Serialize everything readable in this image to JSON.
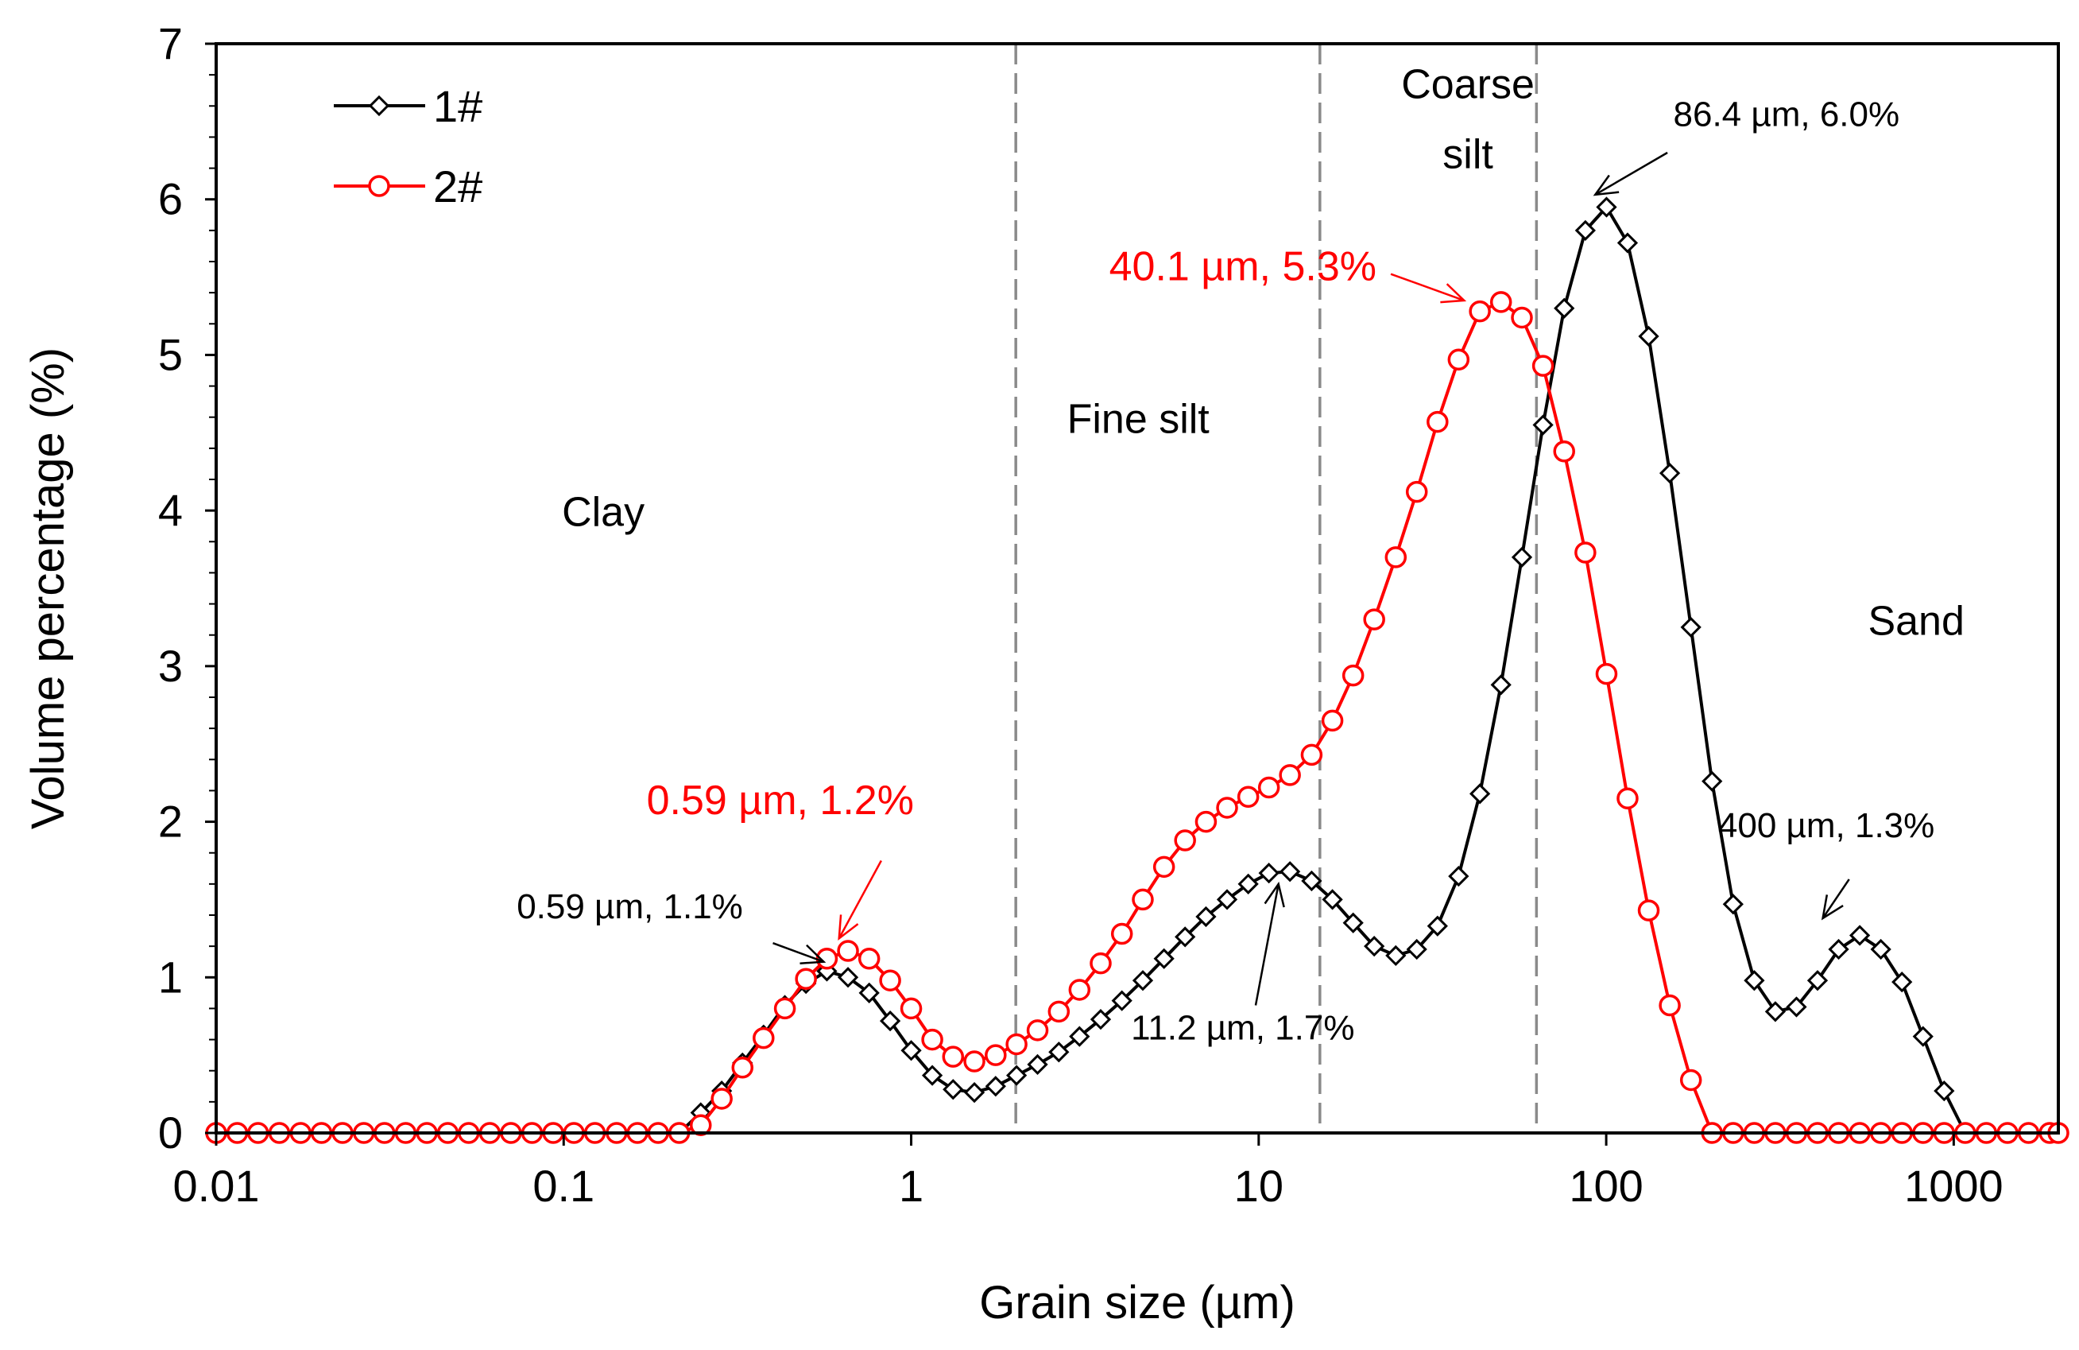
{
  "chart_data": {
    "type": "line",
    "title": "",
    "xlabel": "Grain size (µm)",
    "ylabel": "Volume percentage (%)",
    "x_scale": "log",
    "xlim": [
      0.01,
      2000
    ],
    "ylim": [
      0,
      7
    ],
    "x_ticks": [
      {
        "value": 0.01,
        "label": "0.01"
      },
      {
        "value": 0.1,
        "label": "0.1"
      },
      {
        "value": 1,
        "label": "1"
      },
      {
        "value": 10,
        "label": "10"
      },
      {
        "value": 100,
        "label": "100"
      },
      {
        "value": 1000,
        "label": "1000"
      }
    ],
    "y_ticks": [
      {
        "value": 0,
        "label": "0"
      },
      {
        "value": 1,
        "label": "1"
      },
      {
        "value": 2,
        "label": "2"
      },
      {
        "value": 3,
        "label": "3"
      },
      {
        "value": 4,
        "label": "4"
      },
      {
        "value": 5,
        "label": "5"
      },
      {
        "value": 6,
        "label": "6"
      },
      {
        "value": 7,
        "label": "7"
      }
    ],
    "grid": false,
    "legend": {
      "position": "top-left"
    },
    "boundaries": [
      2,
      15,
      63
    ],
    "regions": [
      {
        "label": "Clay",
        "x": 0.13,
        "y": 3.9
      },
      {
        "label": "Fine silt",
        "x": 4.5,
        "y": 4.5
      },
      {
        "label": "Coarse",
        "x": 40,
        "y": 6.65
      },
      {
        "label": "silt",
        "x": 40,
        "y": 6.2
      },
      {
        "label": "Sand",
        "x": 780,
        "y": 3.2
      }
    ],
    "series": [
      {
        "name": "1#",
        "color": "#000000",
        "marker": "diamond",
        "points": [
          [
            0.01,
            0
          ],
          [
            0.0115,
            0
          ],
          [
            0.0132,
            0
          ],
          [
            0.0152,
            0
          ],
          [
            0.0175,
            0
          ],
          [
            0.0201,
            0
          ],
          [
            0.0231,
            0
          ],
          [
            0.0266,
            0
          ],
          [
            0.0305,
            0
          ],
          [
            0.0351,
            0
          ],
          [
            0.0404,
            0
          ],
          [
            0.0464,
            0
          ],
          [
            0.0533,
            0
          ],
          [
            0.0613,
            0
          ],
          [
            0.0705,
            0
          ],
          [
            0.0811,
            0
          ],
          [
            0.0933,
            0
          ],
          [
            0.107,
            0
          ],
          [
            0.123,
            0
          ],
          [
            0.142,
            0
          ],
          [
            0.163,
            0
          ],
          [
            0.187,
            0
          ],
          [
            0.215,
            0
          ],
          [
            0.248,
            0.13
          ],
          [
            0.285,
            0.27
          ],
          [
            0.327,
            0.45
          ],
          [
            0.376,
            0.63
          ],
          [
            0.433,
            0.82
          ],
          [
            0.498,
            0.96
          ],
          [
            0.572,
            1.04
          ],
          [
            0.658,
            1.0
          ],
          [
            0.757,
            0.9
          ],
          [
            0.87,
            0.72
          ],
          [
            1.0,
            0.53
          ],
          [
            1.15,
            0.37
          ],
          [
            1.32,
            0.28
          ],
          [
            1.52,
            0.26
          ],
          [
            1.75,
            0.3
          ],
          [
            2.01,
            0.37
          ],
          [
            2.31,
            0.44
          ],
          [
            2.66,
            0.52
          ],
          [
            3.05,
            0.62
          ],
          [
            3.51,
            0.73
          ],
          [
            4.04,
            0.85
          ],
          [
            4.64,
            0.98
          ],
          [
            5.34,
            1.12
          ],
          [
            6.14,
            1.26
          ],
          [
            7.05,
            1.39
          ],
          [
            8.11,
            1.5
          ],
          [
            9.33,
            1.6
          ],
          [
            10.7,
            1.67
          ],
          [
            12.3,
            1.68
          ],
          [
            14.2,
            1.62
          ],
          [
            16.3,
            1.5
          ],
          [
            18.7,
            1.35
          ],
          [
            21.5,
            1.2
          ],
          [
            24.8,
            1.14
          ],
          [
            28.5,
            1.18
          ],
          [
            32.7,
            1.33
          ],
          [
            37.6,
            1.65
          ],
          [
            43.3,
            2.18
          ],
          [
            49.8,
            2.88
          ],
          [
            57.2,
            3.7
          ],
          [
            65.8,
            4.55
          ],
          [
            75.7,
            5.3
          ],
          [
            87.1,
            5.8
          ],
          [
            100.2,
            5.95
          ],
          [
            115.2,
            5.72
          ],
          [
            132.5,
            5.12
          ],
          [
            152.4,
            4.24
          ],
          [
            175.3,
            3.25
          ],
          [
            201.6,
            2.26
          ],
          [
            231.9,
            1.47
          ],
          [
            266.7,
            0.98
          ],
          [
            306.7,
            0.78
          ],
          [
            352.7,
            0.81
          ],
          [
            405.6,
            0.98
          ],
          [
            466.5,
            1.18
          ],
          [
            536.5,
            1.27
          ],
          [
            617.0,
            1.18
          ],
          [
            709.6,
            0.97
          ],
          [
            816.1,
            0.62
          ],
          [
            938.5,
            0.27
          ],
          [
            1079,
            0
          ],
          [
            1241,
            0
          ],
          [
            1428,
            0
          ],
          [
            1642,
            0
          ],
          [
            1888,
            0
          ],
          [
            2000,
            0
          ]
        ]
      },
      {
        "name": "2#",
        "color": "#ff0000",
        "marker": "circle",
        "points": [
          [
            0.01,
            0
          ],
          [
            0.0115,
            0
          ],
          [
            0.0132,
            0
          ],
          [
            0.0152,
            0
          ],
          [
            0.0175,
            0
          ],
          [
            0.0201,
            0
          ],
          [
            0.0231,
            0
          ],
          [
            0.0266,
            0
          ],
          [
            0.0305,
            0
          ],
          [
            0.0351,
            0
          ],
          [
            0.0404,
            0
          ],
          [
            0.0464,
            0
          ],
          [
            0.0533,
            0
          ],
          [
            0.0613,
            0
          ],
          [
            0.0705,
            0
          ],
          [
            0.0811,
            0
          ],
          [
            0.0933,
            0
          ],
          [
            0.107,
            0
          ],
          [
            0.123,
            0
          ],
          [
            0.142,
            0
          ],
          [
            0.163,
            0
          ],
          [
            0.187,
            0
          ],
          [
            0.215,
            0
          ],
          [
            0.248,
            0.05
          ],
          [
            0.285,
            0.22
          ],
          [
            0.327,
            0.42
          ],
          [
            0.376,
            0.61
          ],
          [
            0.433,
            0.8
          ],
          [
            0.498,
            0.99
          ],
          [
            0.572,
            1.12
          ],
          [
            0.658,
            1.17
          ],
          [
            0.757,
            1.12
          ],
          [
            0.87,
            0.98
          ],
          [
            1.0,
            0.8
          ],
          [
            1.15,
            0.6
          ],
          [
            1.32,
            0.49
          ],
          [
            1.52,
            0.46
          ],
          [
            1.75,
            0.5
          ],
          [
            2.01,
            0.57
          ],
          [
            2.31,
            0.66
          ],
          [
            2.66,
            0.78
          ],
          [
            3.05,
            0.92
          ],
          [
            3.51,
            1.09
          ],
          [
            4.04,
            1.28
          ],
          [
            4.64,
            1.5
          ],
          [
            5.34,
            1.71
          ],
          [
            6.14,
            1.88
          ],
          [
            7.05,
            2.0
          ],
          [
            8.11,
            2.09
          ],
          [
            9.33,
            2.16
          ],
          [
            10.7,
            2.22
          ],
          [
            12.3,
            2.3
          ],
          [
            14.2,
            2.43
          ],
          [
            16.3,
            2.65
          ],
          [
            18.7,
            2.94
          ],
          [
            21.5,
            3.3
          ],
          [
            24.8,
            3.7
          ],
          [
            28.5,
            4.12
          ],
          [
            32.7,
            4.57
          ],
          [
            37.6,
            4.97
          ],
          [
            43.3,
            5.28
          ],
          [
            49.8,
            5.34
          ],
          [
            57.2,
            5.24
          ],
          [
            65.8,
            4.93
          ],
          [
            75.7,
            4.38
          ],
          [
            87.1,
            3.73
          ],
          [
            100.2,
            2.95
          ],
          [
            115.2,
            2.15
          ],
          [
            132.5,
            1.43
          ],
          [
            152.4,
            0.82
          ],
          [
            175.3,
            0.34
          ],
          [
            201.6,
            0
          ],
          [
            231.9,
            0
          ],
          [
            266.7,
            0
          ],
          [
            306.7,
            0
          ],
          [
            352.7,
            0
          ],
          [
            405.6,
            0
          ],
          [
            466.5,
            0
          ],
          [
            536.5,
            0
          ],
          [
            617.0,
            0
          ],
          [
            709.6,
            0
          ],
          [
            816.1,
            0
          ],
          [
            938.5,
            0
          ],
          [
            1079,
            0
          ],
          [
            1241,
            0
          ],
          [
            1428,
            0
          ],
          [
            1642,
            0
          ],
          [
            1888,
            0
          ],
          [
            2000,
            0
          ]
        ]
      }
    ],
    "annotations": [
      {
        "text": "0.59 µm, 1.1%",
        "color": "#000000",
        "x": 0.155,
        "y": 1.38,
        "anchor": "middle",
        "arrow_from": [
          0.4,
          1.22
        ],
        "arrow_to": [
          0.56,
          1.1
        ]
      },
      {
        "text": "0.59 µm, 1.2%",
        "color": "#ff0000",
        "x": 0.42,
        "y": 2.05,
        "anchor": "middle",
        "arrow_from": [
          0.82,
          1.75
        ],
        "arrow_to": [
          0.62,
          1.25
        ]
      },
      {
        "text": "11.2 µm, 1.7%",
        "color": "#000000",
        "x": 9.0,
        "y": 0.6,
        "anchor": "middle",
        "arrow_from": [
          9.8,
          0.82
        ],
        "arrow_to": [
          11.4,
          1.6
        ]
      },
      {
        "text": "40.1 µm, 5.3%",
        "color": "#ff0000",
        "x": 9.0,
        "y": 5.48,
        "anchor": "middle",
        "arrow_from": [
          24,
          5.52
        ],
        "arrow_to": [
          39,
          5.35
        ]
      },
      {
        "text": "86.4 µm, 6.0%",
        "color": "#000000",
        "x": 330,
        "y": 6.47,
        "anchor": "middle",
        "arrow_from": [
          150,
          6.3
        ],
        "arrow_to": [
          93,
          6.03
        ]
      },
      {
        "text": "400 µm, 1.3%",
        "color": "#000000",
        "x": 430,
        "y": 1.9,
        "anchor": "middle",
        "arrow_from": [
          500,
          1.63
        ],
        "arrow_to": [
          420,
          1.38
        ]
      }
    ]
  }
}
